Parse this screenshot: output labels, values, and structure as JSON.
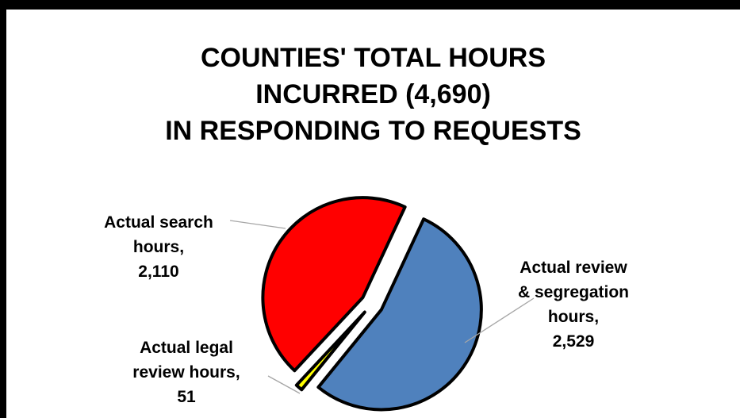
{
  "chart_data": {
    "type": "pie",
    "title": [
      "COUNTIES' TOTAL HOURS",
      "INCURRED (4,690)",
      "IN RESPONDING TO REQUESTS"
    ],
    "series": [
      {
        "values": [
          2529,
          51,
          2110
        ]
      }
    ],
    "slices": [
      {
        "label": [
          "Actual review",
          "& segregation",
          "hours,",
          "2,529"
        ],
        "value": 2529,
        "color": "#4f81bd"
      },
      {
        "label": [
          "Actual legal",
          "review hours,",
          "51"
        ],
        "value": 51,
        "color": "#ffff00"
      },
      {
        "label": [
          "Actual search",
          "hours,",
          "2,110"
        ],
        "value": 2110,
        "color": "#ff0000"
      }
    ],
    "exploded": true,
    "legend": "none"
  }
}
